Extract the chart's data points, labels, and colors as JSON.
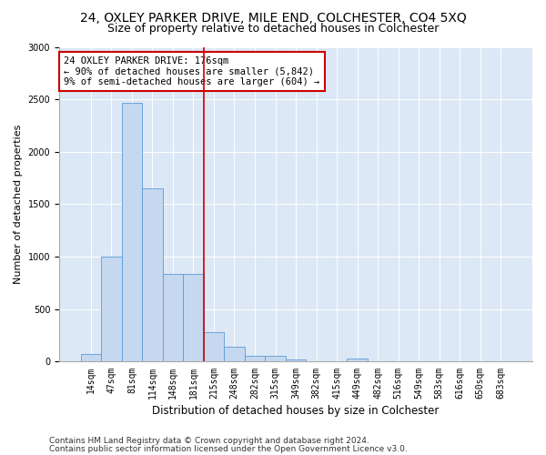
{
  "title1": "24, OXLEY PARKER DRIVE, MILE END, COLCHESTER, CO4 5XQ",
  "title2": "Size of property relative to detached houses in Colchester",
  "xlabel": "Distribution of detached houses by size in Colchester",
  "ylabel": "Number of detached properties",
  "categories": [
    "14sqm",
    "47sqm",
    "81sqm",
    "114sqm",
    "148sqm",
    "181sqm",
    "215sqm",
    "248sqm",
    "282sqm",
    "315sqm",
    "349sqm",
    "382sqm",
    "415sqm",
    "449sqm",
    "482sqm",
    "516sqm",
    "549sqm",
    "583sqm",
    "616sqm",
    "650sqm",
    "683sqm"
  ],
  "values": [
    75,
    1000,
    2470,
    1650,
    840,
    840,
    280,
    140,
    60,
    60,
    20,
    0,
    0,
    30,
    0,
    0,
    0,
    0,
    0,
    0,
    0
  ],
  "bar_color": "#c5d8f0",
  "bar_edge_color": "#5b9bd5",
  "vline_x": 5.5,
  "vline_color": "#cc0000",
  "annotation_text": "24 OXLEY PARKER DRIVE: 176sqm\n← 90% of detached houses are smaller (5,842)\n9% of semi-detached houses are larger (604) →",
  "annotation_box_color": "#ffffff",
  "annotation_box_edge": "#cc0000",
  "ylim": [
    0,
    3000
  ],
  "yticks": [
    0,
    500,
    1000,
    1500,
    2000,
    2500,
    3000
  ],
  "footer1": "Contains HM Land Registry data © Crown copyright and database right 2024.",
  "footer2": "Contains public sector information licensed under the Open Government Licence v3.0.",
  "fig_bg_color": "#ffffff",
  "plot_bg_color": "#dce8f5",
  "title1_fontsize": 10,
  "title2_fontsize": 9,
  "xlabel_fontsize": 8.5,
  "ylabel_fontsize": 8,
  "tick_fontsize": 7,
  "annotation_fontsize": 7.5,
  "footer_fontsize": 6.5
}
